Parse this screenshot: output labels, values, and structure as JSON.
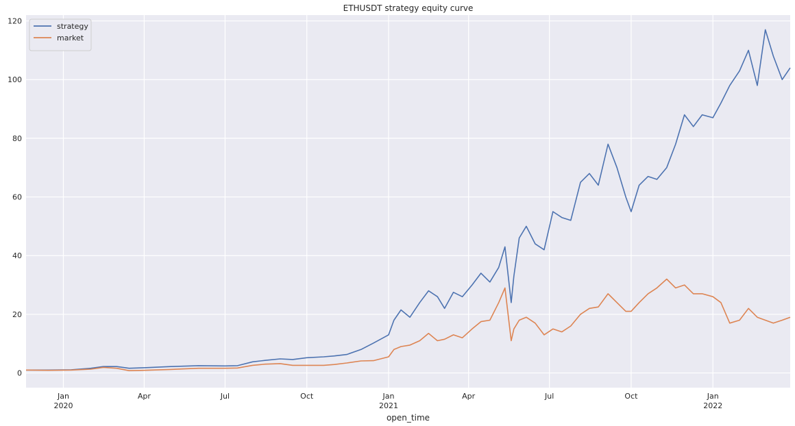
{
  "chart_data": {
    "type": "line",
    "title": "ETHUSDT strategy equity curve",
    "xlabel": "open_time",
    "ylabel": "",
    "xlim": [
      "2019-11-20",
      "2022-03-29"
    ],
    "ylim": [
      -5,
      122
    ],
    "y_ticks": [
      0,
      20,
      40,
      60,
      80,
      100,
      120
    ],
    "x_ticks": [
      {
        "date": "2020-01-01",
        "label": "Jan",
        "sublabel": "2020"
      },
      {
        "date": "2020-04-01",
        "label": "Apr",
        "sublabel": ""
      },
      {
        "date": "2020-07-01",
        "label": "Jul",
        "sublabel": ""
      },
      {
        "date": "2020-10-01",
        "label": "Oct",
        "sublabel": ""
      },
      {
        "date": "2021-01-01",
        "label": "Jan",
        "sublabel": "2021"
      },
      {
        "date": "2021-04-01",
        "label": "Apr",
        "sublabel": ""
      },
      {
        "date": "2021-07-01",
        "label": "Jul",
        "sublabel": ""
      },
      {
        "date": "2021-10-01",
        "label": "Oct",
        "sublabel": ""
      },
      {
        "date": "2022-01-01",
        "label": "Jan",
        "sublabel": "2022"
      }
    ],
    "grid": true,
    "legend": {
      "placement": "top-left"
    },
    "series": [
      {
        "name": "strategy",
        "color": "#4c72b0",
        "points": [
          [
            "2019-11-20",
            1.0
          ],
          [
            "2019-12-15",
            1.0
          ],
          [
            "2020-01-10",
            1.1
          ],
          [
            "2020-02-01",
            1.6
          ],
          [
            "2020-02-15",
            2.2
          ],
          [
            "2020-03-01",
            2.2
          ],
          [
            "2020-03-15",
            1.6
          ],
          [
            "2020-04-01",
            1.8
          ],
          [
            "2020-05-01",
            2.2
          ],
          [
            "2020-06-01",
            2.5
          ],
          [
            "2020-07-01",
            2.4
          ],
          [
            "2020-07-15",
            2.5
          ],
          [
            "2020-08-01",
            3.8
          ],
          [
            "2020-08-15",
            4.3
          ],
          [
            "2020-09-01",
            4.8
          ],
          [
            "2020-09-15",
            4.6
          ],
          [
            "2020-10-01",
            5.2
          ],
          [
            "2020-10-20",
            5.5
          ],
          [
            "2020-11-01",
            5.8
          ],
          [
            "2020-11-15",
            6.3
          ],
          [
            "2020-12-01",
            8.0
          ],
          [
            "2020-12-15",
            10.2
          ],
          [
            "2021-01-01",
            13.0
          ],
          [
            "2021-01-07",
            18.0
          ],
          [
            "2021-01-15",
            21.5
          ],
          [
            "2021-01-25",
            19.0
          ],
          [
            "2021-02-05",
            24.0
          ],
          [
            "2021-02-15",
            28.0
          ],
          [
            "2021-02-25",
            26.0
          ],
          [
            "2021-03-05",
            22.0
          ],
          [
            "2021-03-15",
            27.5
          ],
          [
            "2021-03-25",
            26.0
          ],
          [
            "2021-04-05",
            30.0
          ],
          [
            "2021-04-15",
            34.0
          ],
          [
            "2021-04-25",
            31.0
          ],
          [
            "2021-05-05",
            36.0
          ],
          [
            "2021-05-12",
            43.0
          ],
          [
            "2021-05-19",
            24.0
          ],
          [
            "2021-05-22",
            33.0
          ],
          [
            "2021-05-28",
            46.0
          ],
          [
            "2021-06-05",
            50.0
          ],
          [
            "2021-06-15",
            44.0
          ],
          [
            "2021-06-25",
            42.0
          ],
          [
            "2021-07-05",
            55.0
          ],
          [
            "2021-07-15",
            53.0
          ],
          [
            "2021-07-25",
            52.0
          ],
          [
            "2021-08-05",
            65.0
          ],
          [
            "2021-08-15",
            68.0
          ],
          [
            "2021-08-25",
            64.0
          ],
          [
            "2021-09-05",
            78.0
          ],
          [
            "2021-09-15",
            70.0
          ],
          [
            "2021-09-25",
            60.0
          ],
          [
            "2021-10-01",
            55.0
          ],
          [
            "2021-10-10",
            64.0
          ],
          [
            "2021-10-20",
            67.0
          ],
          [
            "2021-10-30",
            66.0
          ],
          [
            "2021-11-10",
            70.0
          ],
          [
            "2021-11-20",
            78.0
          ],
          [
            "2021-11-30",
            88.0
          ],
          [
            "2021-12-10",
            84.0
          ],
          [
            "2021-12-20",
            88.0
          ],
          [
            "2022-01-01",
            87.0
          ],
          [
            "2022-01-10",
            92.0
          ],
          [
            "2022-01-20",
            98.0
          ],
          [
            "2022-01-31",
            103.0
          ],
          [
            "2022-02-10",
            110.0
          ],
          [
            "2022-02-20",
            98.0
          ],
          [
            "2022-03-01",
            117.0
          ],
          [
            "2022-03-10",
            108.0
          ],
          [
            "2022-03-20",
            100.0
          ],
          [
            "2022-03-29",
            104.0
          ]
        ]
      },
      {
        "name": "market",
        "color": "#dd8452",
        "points": [
          [
            "2019-11-20",
            1.0
          ],
          [
            "2019-12-15",
            0.9
          ],
          [
            "2020-01-10",
            1.0
          ],
          [
            "2020-02-01",
            1.3
          ],
          [
            "2020-02-15",
            1.9
          ],
          [
            "2020-03-01",
            1.6
          ],
          [
            "2020-03-15",
            0.8
          ],
          [
            "2020-04-01",
            0.9
          ],
          [
            "2020-05-01",
            1.2
          ],
          [
            "2020-06-01",
            1.6
          ],
          [
            "2020-07-01",
            1.6
          ],
          [
            "2020-07-15",
            1.7
          ],
          [
            "2020-08-01",
            2.6
          ],
          [
            "2020-08-15",
            3.0
          ],
          [
            "2020-09-01",
            3.2
          ],
          [
            "2020-09-15",
            2.6
          ],
          [
            "2020-10-01",
            2.6
          ],
          [
            "2020-10-20",
            2.6
          ],
          [
            "2020-11-01",
            2.9
          ],
          [
            "2020-11-15",
            3.4
          ],
          [
            "2020-12-01",
            4.1
          ],
          [
            "2020-12-15",
            4.2
          ],
          [
            "2021-01-01",
            5.5
          ],
          [
            "2021-01-07",
            8.0
          ],
          [
            "2021-01-15",
            9.0
          ],
          [
            "2021-01-25",
            9.5
          ],
          [
            "2021-02-05",
            11.0
          ],
          [
            "2021-02-15",
            13.5
          ],
          [
            "2021-02-25",
            11.0
          ],
          [
            "2021-03-05",
            11.5
          ],
          [
            "2021-03-15",
            13.0
          ],
          [
            "2021-03-25",
            12.0
          ],
          [
            "2021-04-05",
            15.0
          ],
          [
            "2021-04-15",
            17.5
          ],
          [
            "2021-04-25",
            18.0
          ],
          [
            "2021-05-05",
            24.0
          ],
          [
            "2021-05-12",
            29.0
          ],
          [
            "2021-05-19",
            11.0
          ],
          [
            "2021-05-22",
            15.0
          ],
          [
            "2021-05-28",
            18.0
          ],
          [
            "2021-06-05",
            19.0
          ],
          [
            "2021-06-15",
            17.0
          ],
          [
            "2021-06-25",
            13.0
          ],
          [
            "2021-07-05",
            15.0
          ],
          [
            "2021-07-15",
            14.0
          ],
          [
            "2021-07-25",
            16.0
          ],
          [
            "2021-08-05",
            20.0
          ],
          [
            "2021-08-15",
            22.0
          ],
          [
            "2021-08-25",
            22.5
          ],
          [
            "2021-09-05",
            27.0
          ],
          [
            "2021-09-15",
            24.0
          ],
          [
            "2021-09-25",
            21.0
          ],
          [
            "2021-10-01",
            21.0
          ],
          [
            "2021-10-10",
            24.0
          ],
          [
            "2021-10-20",
            27.0
          ],
          [
            "2021-10-30",
            29.0
          ],
          [
            "2021-11-10",
            32.0
          ],
          [
            "2021-11-20",
            29.0
          ],
          [
            "2021-11-30",
            30.0
          ],
          [
            "2021-12-10",
            27.0
          ],
          [
            "2021-12-20",
            27.0
          ],
          [
            "2022-01-01",
            26.0
          ],
          [
            "2022-01-10",
            24.0
          ],
          [
            "2022-01-20",
            17.0
          ],
          [
            "2022-01-31",
            18.0
          ],
          [
            "2022-02-10",
            22.0
          ],
          [
            "2022-02-20",
            19.0
          ],
          [
            "2022-03-01",
            18.0
          ],
          [
            "2022-03-10",
            17.0
          ],
          [
            "2022-03-20",
            18.0
          ],
          [
            "2022-03-29",
            19.0
          ]
        ]
      }
    ]
  }
}
